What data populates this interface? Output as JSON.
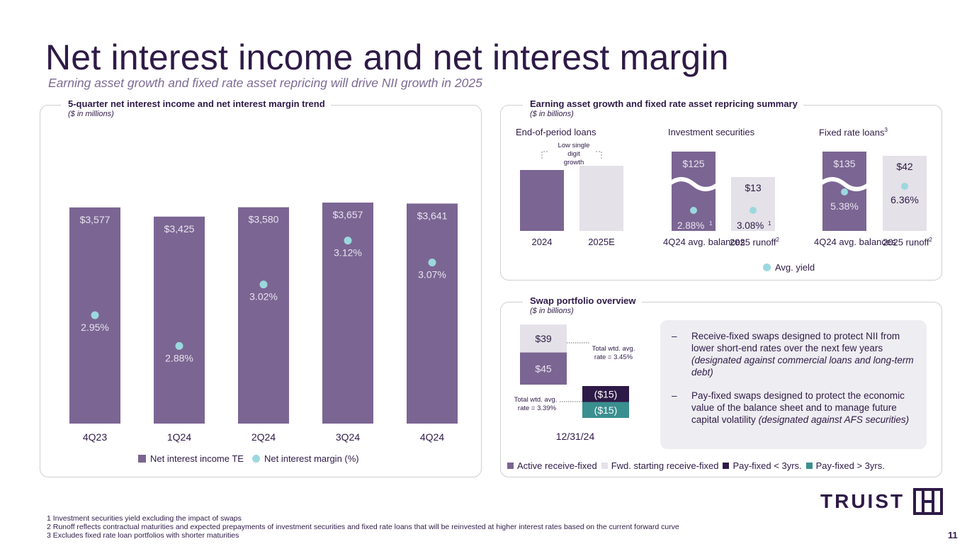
{
  "title": "Net interest income and net interest margin",
  "subtitle": "Earning asset growth and fixed rate asset repricing will drive NII growth in 2025",
  "left_panel": {
    "heading": "5-quarter net interest income and net interest margin trend",
    "unit": "($ in millions)"
  },
  "right_top_panel": {
    "heading": "Earning asset growth and fixed rate asset repricing summary",
    "unit": "($ in billions)"
  },
  "swap_panel": {
    "heading": "Swap portfolio overview",
    "unit": "($ in billions)"
  },
  "colors": {
    "purple": "#7b6593",
    "light": "#e4e1e8",
    "dark": "#2e1a47",
    "teal": "#3a8f8f",
    "dot": "#9bd8de"
  },
  "chart_data": [
    {
      "type": "bar",
      "name": "nii_trend",
      "categories": [
        "4Q23",
        "1Q24",
        "2Q24",
        "3Q24",
        "4Q24"
      ],
      "series": [
        {
          "name": "Net interest income TE",
          "values": [
            3577,
            3425,
            3580,
            3657,
            3641
          ],
          "labels": [
            "$3,577",
            "$3,425",
            "$3,580",
            "$3,657",
            "$3,641"
          ]
        },
        {
          "name": "Net interest margin (%)",
          "values": [
            2.95,
            2.88,
            3.02,
            3.12,
            3.07
          ],
          "labels": [
            "2.95%",
            "2.88%",
            "3.02%",
            "3.12%",
            "3.07%"
          ]
        }
      ],
      "legend": [
        "Net interest income TE",
        "Net interest margin (%)"
      ]
    },
    {
      "type": "bar",
      "name": "end_of_period_loans",
      "title": "End-of-period loans",
      "categories": [
        "2024",
        "2025E"
      ],
      "annotation": "Low single digit growth"
    },
    {
      "type": "bar",
      "name": "investment_securities",
      "title": "Investment securities",
      "categories": [
        "4Q24 avg. balances",
        "2025 runoff"
      ],
      "values": [
        125,
        13
      ],
      "labels": [
        "$125",
        "$13"
      ],
      "yields": [
        "2.88%",
        "3.08%"
      ],
      "footnote_marks": [
        "1",
        "1"
      ],
      "category_marks": [
        "",
        "2"
      ]
    },
    {
      "type": "bar",
      "name": "fixed_rate_loans",
      "title": "Fixed rate loans",
      "title_mark": "3",
      "categories": [
        "4Q24 avg. balances",
        "2025 runoff"
      ],
      "values": [
        135,
        42
      ],
      "labels": [
        "$135",
        "$42"
      ],
      "yields": [
        "5.38%",
        "6.36%"
      ],
      "category_marks": [
        "",
        "2"
      ],
      "legend": [
        "Avg. yield"
      ]
    },
    {
      "type": "bar",
      "name": "swap_portfolio",
      "categories": [
        "12/31/24"
      ],
      "series": [
        {
          "name": "Active receive-fixed",
          "value": 45,
          "label": "$45"
        },
        {
          "name": "Fwd. starting receive-fixed",
          "value": 39,
          "label": "$39"
        },
        {
          "name": "Pay-fixed < 3yrs.",
          "value": -15,
          "label": "($15)"
        },
        {
          "name": "Pay-fixed > 3yrs.",
          "value": -15,
          "label": "($15)"
        }
      ],
      "annotations": [
        "Total wtd. avg. rate = 3.45%",
        "Total wtd. avg. rate = 3.39%"
      ],
      "legend": [
        "Active receive-fixed",
        "Fwd. starting receive-fixed",
        "Pay-fixed < 3yrs.",
        "Pay-fixed > 3yrs."
      ]
    }
  ],
  "swap_notes": {
    "bullet1_plain": "Receive-fixed swaps designed to protect NII from lower short-end rates over the next few years",
    "bullet1_italic": "(designated against commercial loans and long-term debt)",
    "bullet2_plain": "Pay-fixed swaps designed to protect the economic value of the balance sheet and to manage future capital volatility",
    "bullet2_italic": "(designated against AFS securities)",
    "dash": "–"
  },
  "footnotes": [
    "1  Investment securities yield excluding the impact of swaps",
    "2  Runoff reflects contractual maturities and expected prepayments of investment securities and fixed rate loans that will be reinvested at higher interest rates based on the current forward curve",
    "3  Excludes fixed rate loan portfolios with shorter maturities"
  ],
  "logo_text": "TRUIST",
  "page_number": "11"
}
